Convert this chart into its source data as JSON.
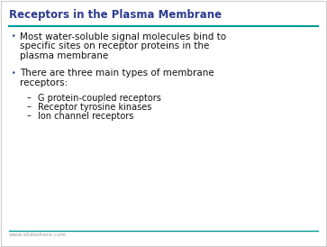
{
  "title": "Receptors in the Plasma Membrane",
  "title_color": "#2B3A8F",
  "title_fontsize": 8.5,
  "slide_bg": "#FFFFFF",
  "border_color": "#CCCCCC",
  "line_color_top": "#009999",
  "line_color_bottom": "#009999",
  "bullet_color": "#2B3A8F",
  "text_color": "#111111",
  "bullet_fontsize": 7.5,
  "sub_fontsize": 7.0,
  "bullet1_line1": "Most water-soluble signal molecules bind to",
  "bullet1_line2": "specific sites on receptor proteins in the",
  "bullet1_line3": "plasma membrane",
  "bullet2_line1": "There are three main types of membrane",
  "bullet2_line2": "receptors:",
  "sub1": "G protein-coupled receptors",
  "sub2": "Receptor tyrosine kinases",
  "sub3": "Ion channel receptors",
  "footer": "www.slideshare.com",
  "footer_color": "#999999",
  "footer_fontsize": 4.5
}
